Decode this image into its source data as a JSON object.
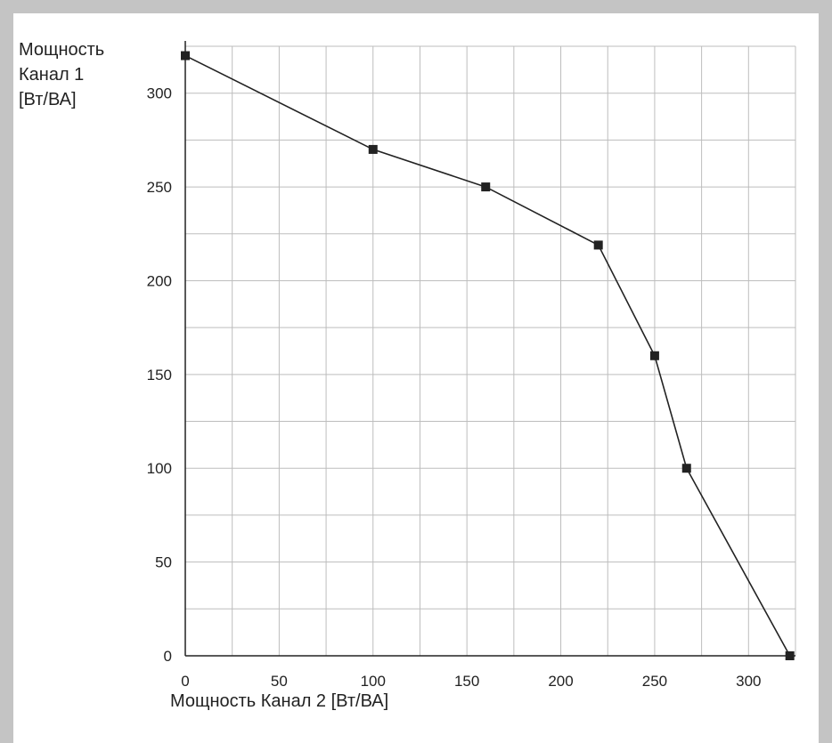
{
  "chart_data": {
    "type": "line",
    "ylabel_lines": [
      "Мощность",
      "Канал 1",
      "[Вт/ВА]"
    ],
    "xlabel": "Мощность Канал 2 [Вт/ВА]",
    "xlim": [
      0,
      325
    ],
    "ylim": [
      0,
      325
    ],
    "x_ticks": [
      0,
      50,
      100,
      150,
      200,
      250,
      300
    ],
    "y_ticks": [
      0,
      50,
      100,
      150,
      200,
      250,
      300
    ],
    "grid": true,
    "grid_step": 25,
    "series": [
      {
        "x": [
          0,
          100,
          160,
          220,
          250,
          267,
          322
        ],
        "y": [
          320,
          270,
          250,
          219,
          160,
          100,
          0
        ],
        "color": "#222222",
        "marker": "square"
      }
    ]
  }
}
